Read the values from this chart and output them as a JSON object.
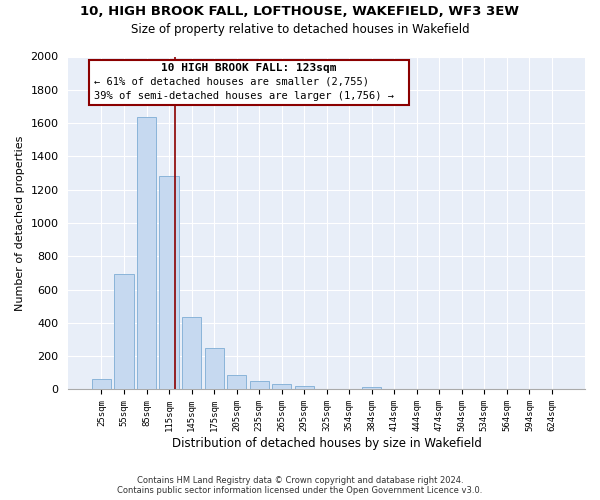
{
  "title": "10, HIGH BROOK FALL, LOFTHOUSE, WAKEFIELD, WF3 3EW",
  "subtitle": "Size of property relative to detached houses in Wakefield",
  "xlabel": "Distribution of detached houses by size in Wakefield",
  "ylabel": "Number of detached properties",
  "bar_labels": [
    "25sqm",
    "55sqm",
    "85sqm",
    "115sqm",
    "145sqm",
    "175sqm",
    "205sqm",
    "235sqm",
    "265sqm",
    "295sqm",
    "325sqm",
    "354sqm",
    "384sqm",
    "414sqm",
    "444sqm",
    "474sqm",
    "504sqm",
    "534sqm",
    "564sqm",
    "594sqm",
    "624sqm"
  ],
  "bar_values": [
    65,
    695,
    1635,
    1285,
    435,
    252,
    88,
    50,
    30,
    20,
    0,
    0,
    15,
    0,
    0,
    0,
    0,
    0,
    0,
    0,
    0
  ],
  "bar_color": "#c6d9f0",
  "bar_edge_color": "#8ab4d9",
  "vline_color": "#8b0000",
  "annotation_title": "10 HIGH BROOK FALL: 123sqm",
  "annotation_line1": "← 61% of detached houses are smaller (2,755)",
  "annotation_line2": "39% of semi-detached houses are larger (1,756) →",
  "box_edge_color": "#8b0000",
  "ylim": [
    0,
    2000
  ],
  "yticks": [
    0,
    200,
    400,
    600,
    800,
    1000,
    1200,
    1400,
    1600,
    1800,
    2000
  ],
  "footer_line1": "Contains HM Land Registry data © Crown copyright and database right 2024.",
  "footer_line2": "Contains public sector information licensed under the Open Government Licence v3.0.",
  "bg_color": "#ffffff",
  "plot_bg_color": "#e8eef8",
  "grid_color": "#ffffff"
}
